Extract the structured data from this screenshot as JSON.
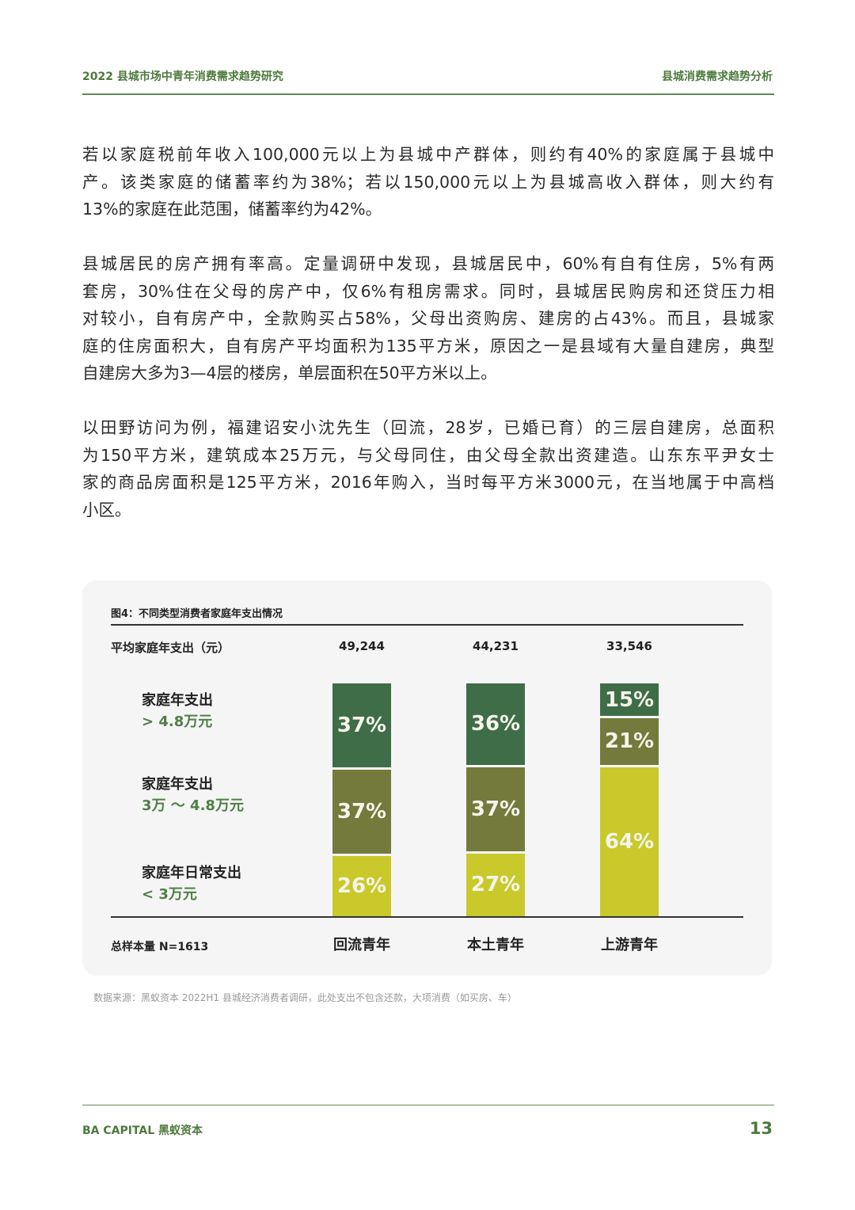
{
  "header": {
    "left": "2022 县城市场中青年消费需求趋势研究",
    "right": "县城消费需求趋势分析"
  },
  "paragraphs": [
    [
      "若以家庭税前年收入100,000元以上为县城中产群体，则约有40%的家庭属于县城中",
      "产。该类家庭的储蓄率约为38%；若以150,000元以上为县城高收入群体，则大约有",
      "13%的家庭在此范围，储蓄率约为42%。"
    ],
    [
      "县城居民的房产拥有率高。定量调研中发现，县城居民中，60%有自有住房，5%有两",
      "套房，30%住在父母的房产中，仅6%有租房需求。同时，县城居民购房和还贷压力相",
      "对较小，自有房产中，全款购买占58%，父母出资购房、建房的占43%。而且，县城家",
      "庭的住房面积大，自有房产平均面积为135平方米，原因之一是县域有大量自建房，典型",
      "自建房大多为3—4层的楼房，单层面积在50平方米以上。"
    ],
    [
      "以田野访问为例，福建诏安小沈先生（回流，28岁，已婚已育）的三层自建房，总面积",
      "为150平方米，建筑成本25万元，与父母同住，由父母全款出资建造。山东东平尹女士",
      "家的商品房面积是125平方米，2016年购入，当时每平方米3000元，在当地属于中高档",
      "小区。"
    ]
  ],
  "chart_data": {
    "type": "bar",
    "stacked": true,
    "title": "图4：不同类型消费者家庭年支出情况",
    "avg_label": "平均家庭年支出（元）",
    "categories": [
      "回流青年",
      "本土青年",
      "上游青年"
    ],
    "avg_values": [
      "49,244",
      "44,231",
      "33,546"
    ],
    "series": [
      {
        "name": "家庭年支出",
        "sub": "> 4.8万元",
        "values": [
          37,
          36,
          15
        ],
        "color": "#3f6d48"
      },
      {
        "name": "家庭年支出",
        "sub": "3万 ～ 4.8万元",
        "values": [
          37,
          37,
          21
        ],
        "color": "#737a3b"
      },
      {
        "name": "家庭年日常支出",
        "sub": "< 3万元",
        "values": [
          26,
          27,
          64
        ],
        "color": "#c9c92c"
      }
    ],
    "sample": "总样本量 N=1613",
    "unit": "%"
  },
  "source": "数据来源：黑蚁资本 2022H1 县城经济消费者调研，此处支出不包含还款，大项消费（如买房、车）",
  "footer": {
    "brand": "BA CAPITAL 黑蚁资本",
    "page": "13"
  }
}
